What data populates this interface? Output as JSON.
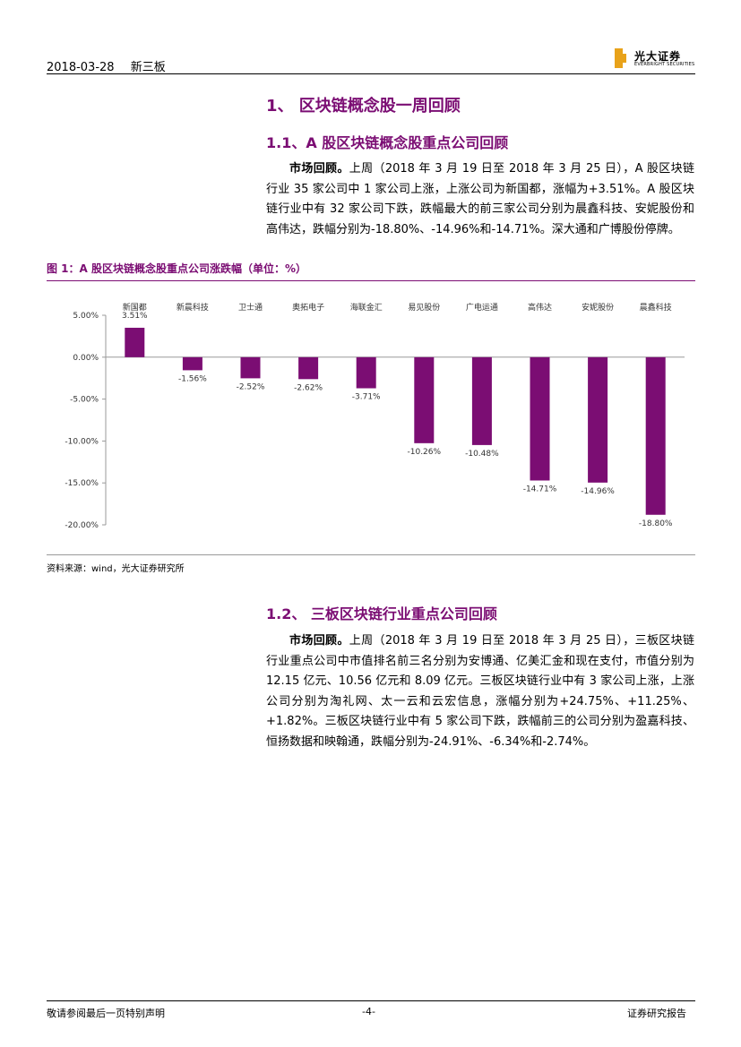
{
  "header": {
    "date": "2018-03-28",
    "section": "新三板"
  },
  "logo": {
    "name_cn": "光大证券",
    "name_en": "EVERBRIGHT SECURITIES",
    "brand_color": "#e8a21a"
  },
  "section1": {
    "title": "1、 区块链概念股一周回顾"
  },
  "section1_1": {
    "title": "1.1、A 股区块链概念股重点公司回顾",
    "lead": "市场回顾。",
    "body": "上周（2018 年 3 月 19 日至 2018 年 3 月 25 日），A 股区块链行业 35 家公司中 1 家公司上涨，上涨公司为新国都，涨幅为+3.51%。A 股区块链行业中有 32 家公司下跌，跌幅最大的前三家公司分别为晨鑫科技、安妮股份和高伟达，跌幅分别为-18.80%、-14.96%和-14.71%。深大通和广博股份停牌。"
  },
  "figure1": {
    "title": "图 1：A 股区块链概念股重点公司涨跌幅（单位：%）",
    "source": "资料来源：wind，光大证券研究所"
  },
  "chart_data": {
    "type": "bar",
    "title": "",
    "categories": [
      "新国都",
      "新晨科技",
      "卫士通",
      "奥拓电子",
      "海联金汇",
      "易见股份",
      "广电运通",
      "高伟达",
      "安妮股份",
      "晨鑫科技"
    ],
    "values": [
      3.51,
      -1.56,
      -2.52,
      -2.62,
      -3.71,
      -10.26,
      -10.48,
      -14.71,
      -14.96,
      -18.8
    ],
    "data_labels": [
      "3.51%",
      "-1.56%",
      "-2.52%",
      "-2.62%",
      "-3.71%",
      "-10.26%",
      "-10.48%",
      "-14.71%",
      "-14.96%",
      "-18.80%"
    ],
    "y_ticks": [
      5,
      0,
      -5,
      -10,
      -15,
      -20
    ],
    "y_tick_labels": [
      "5.00%",
      "0.00%",
      "-5.00%",
      "-10.00%",
      "-15.00%",
      "-20.00%"
    ],
    "ylim": [
      -20,
      5
    ],
    "bar_color": "#7b0d73",
    "grid": false,
    "legend": "none"
  },
  "section1_2": {
    "title": "1.2、 三板区块链行业重点公司回顾",
    "lead": "市场回顾。",
    "body": "上周（2018 年 3 月 19 日至 2018 年 3 月 25 日），三板区块链行业重点公司中市值排名前三名分别为安博通、亿美汇金和现在支付，市值分别为 12.15 亿元、10.56 亿元和 8.09 亿元。三板区块链行业中有 3 家公司上涨，上涨公司分别为淘礼网、太一云和云宏信息，涨幅分别为+24.75%、+11.25%、+1.82%。三板区块链行业中有 5 家公司下跌，跌幅前三的公司分别为盈嘉科技、恒扬数据和映翰通，跌幅分别为-24.91%、-6.34%和-2.74%。"
  },
  "footer": {
    "left": "敬请参阅最后一页特别声明",
    "center": "-4-",
    "right": "证券研究报告"
  },
  "colors": {
    "accent": "#7b0d73"
  }
}
